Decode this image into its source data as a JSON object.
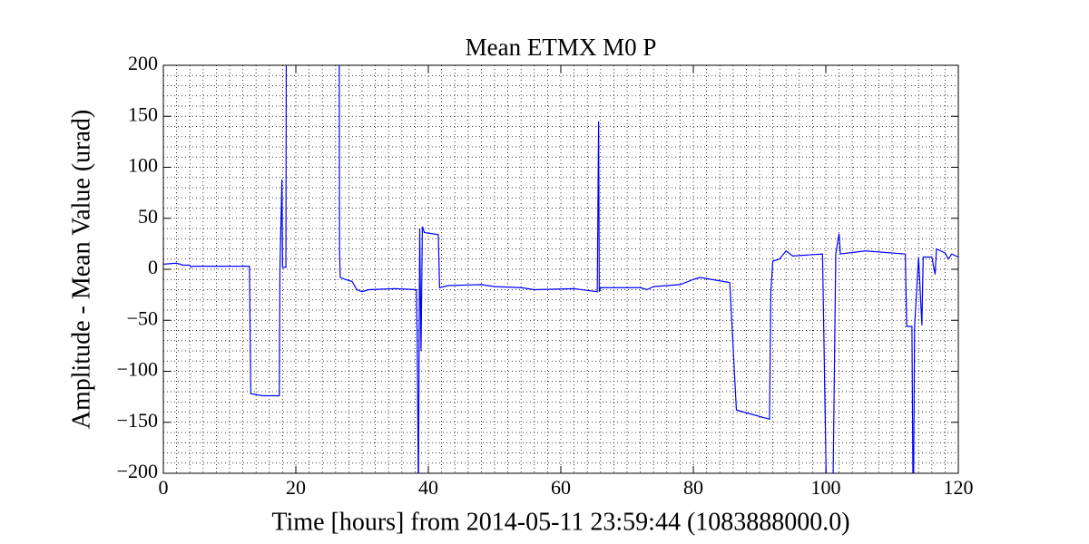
{
  "chart_data": {
    "type": "line",
    "title": "Mean ETMX M0 P",
    "xlabel": "Time [hours] from 2014-05-11 23:59:44 (1083888000.0)",
    "ylabel": "Amplitude - Mean Value (urad)",
    "color": "#0000ff",
    "x": [
      0,
      2,
      3,
      4,
      4.2,
      4.5,
      13,
      13.2,
      15,
      17.5,
      17.6,
      17.9,
      18,
      18.5,
      18.6,
      26.5,
      26.6,
      26.7,
      27.5,
      28.5,
      29.2,
      30,
      31,
      35,
      38.2,
      38.3,
      38.5,
      38.7,
      38.9,
      39.1,
      39.4,
      41.5,
      41.7,
      43,
      48,
      50,
      54,
      56,
      62,
      65.5,
      65.7,
      65.8,
      66,
      72,
      73,
      74,
      78,
      80,
      81,
      85.5,
      86.5,
      91.5,
      91.7,
      92,
      93,
      94,
      95,
      99.5,
      100.2,
      101,
      101.5,
      102,
      102.2,
      106,
      112,
      112.2,
      113,
      113.2,
      113.4,
      114,
      114.5,
      114.7,
      116,
      116.5,
      116.7,
      118,
      118.5,
      119,
      120
    ],
    "values": [
      5,
      6,
      4,
      4,
      2,
      3,
      3,
      -122,
      -124,
      -124,
      0,
      88,
      2,
      2,
      400,
      400,
      20,
      -8,
      -10,
      -12,
      -20,
      -22,
      -20,
      -19,
      -20,
      -60,
      -220,
      40,
      -80,
      42,
      36,
      34,
      -18,
      -16,
      -15,
      -17,
      -18,
      -20,
      -19,
      -22,
      145,
      -22,
      -18,
      -18,
      -20,
      -17,
      -15,
      -10,
      -8,
      -13,
      -138,
      -147,
      -22,
      8,
      10,
      18,
      13,
      15,
      -260,
      -260,
      15,
      35,
      15,
      18,
      15,
      -56,
      -56,
      -260,
      -56,
      12,
      -55,
      12,
      12,
      -5,
      20,
      16,
      10,
      15,
      12
    ],
    "xlim": [
      0,
      120
    ],
    "xticks": [
      0,
      20,
      40,
      60,
      80,
      100,
      120
    ],
    "ylim": [
      -200,
      200
    ],
    "yticks": [
      {
        "value": -200,
        "label": "−200"
      },
      {
        "value": -150,
        "label": "−150"
      },
      {
        "value": -100,
        "label": "−100"
      },
      {
        "value": -50,
        "label": "−50"
      },
      0,
      50,
      100,
      150,
      200
    ],
    "grid": true,
    "minor_divisions": {
      "x": 10,
      "y": 5
    }
  }
}
